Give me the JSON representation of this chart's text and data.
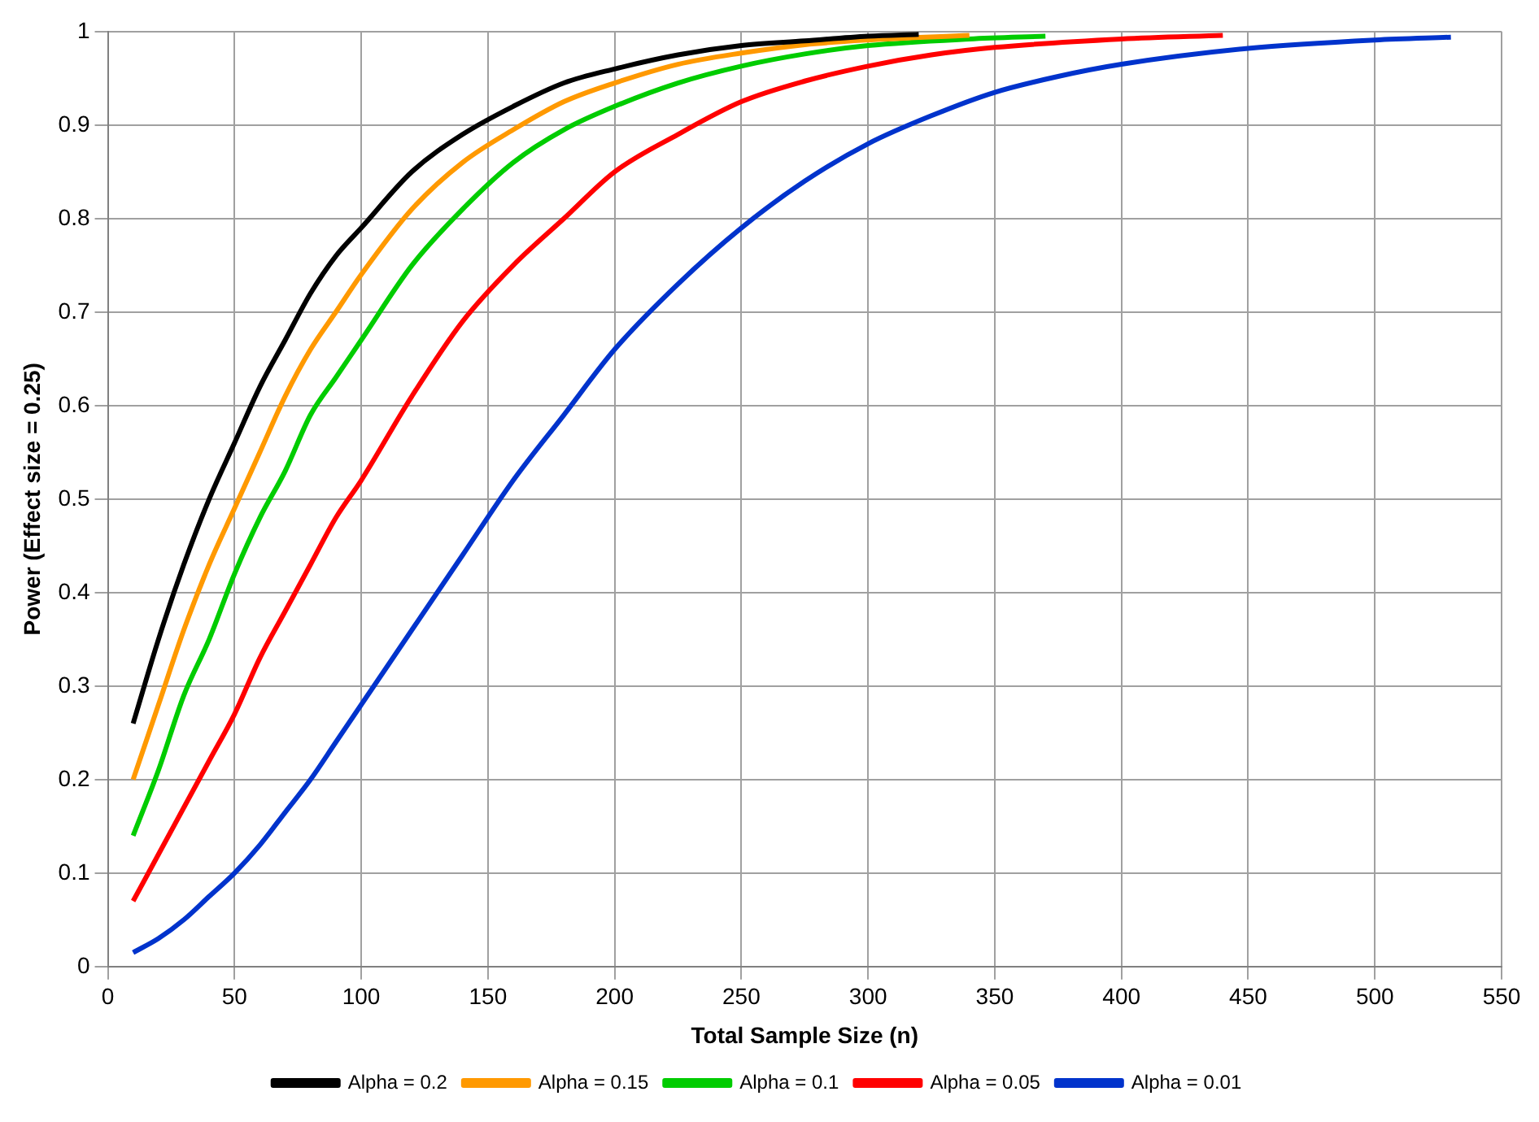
{
  "chart_data": {
    "type": "line",
    "xlabel": "Total Sample Size (n)",
    "ylabel": "Power (Effect size = 0.25)",
    "xlim": [
      0,
      550
    ],
    "xticks": [
      0,
      50,
      100,
      150,
      200,
      250,
      300,
      350,
      400,
      450,
      500,
      550
    ],
    "ylim": [
      0,
      1
    ],
    "yticks": [
      0,
      0.1,
      0.2,
      0.3,
      0.4,
      0.5,
      0.6,
      0.7,
      0.8,
      0.9,
      1
    ],
    "grid": true,
    "legend": "bottom",
    "marker": "none",
    "line_style": "solid",
    "series": [
      {
        "name": "Alpha = 0.2",
        "color": "#000000",
        "x": [
          10,
          20,
          30,
          40,
          50,
          60,
          70,
          80,
          90,
          100,
          120,
          140,
          160,
          180,
          200,
          225,
          250,
          275,
          300,
          320
        ],
        "values": [
          0.26,
          0.35,
          0.43,
          0.5,
          0.56,
          0.62,
          0.67,
          0.72,
          0.76,
          0.79,
          0.85,
          0.89,
          0.92,
          0.945,
          0.96,
          0.975,
          0.985,
          0.99,
          0.995,
          0.997
        ]
      },
      {
        "name": "Alpha = 0.15",
        "color": "#ff9900",
        "x": [
          10,
          20,
          30,
          40,
          50,
          60,
          70,
          80,
          90,
          100,
          120,
          140,
          160,
          180,
          200,
          225,
          250,
          275,
          300,
          340
        ],
        "values": [
          0.2,
          0.28,
          0.36,
          0.43,
          0.49,
          0.55,
          0.61,
          0.66,
          0.7,
          0.74,
          0.81,
          0.86,
          0.895,
          0.925,
          0.945,
          0.965,
          0.977,
          0.986,
          0.991,
          0.996
        ]
      },
      {
        "name": "Alpha = 0.1",
        "color": "#00cc00",
        "x": [
          10,
          20,
          30,
          40,
          50,
          60,
          70,
          80,
          90,
          100,
          120,
          140,
          160,
          180,
          200,
          225,
          250,
          275,
          300,
          340,
          370
        ],
        "values": [
          0.14,
          0.21,
          0.29,
          0.35,
          0.42,
          0.48,
          0.53,
          0.59,
          0.63,
          0.67,
          0.75,
          0.81,
          0.86,
          0.895,
          0.92,
          0.945,
          0.963,
          0.976,
          0.985,
          0.992,
          0.995
        ]
      },
      {
        "name": "Alpha = 0.05",
        "color": "#ff0000",
        "x": [
          10,
          20,
          30,
          40,
          50,
          60,
          70,
          80,
          90,
          100,
          120,
          140,
          160,
          180,
          200,
          225,
          250,
          275,
          300,
          325,
          350,
          400,
          440
        ],
        "values": [
          0.07,
          0.12,
          0.17,
          0.22,
          0.27,
          0.33,
          0.38,
          0.43,
          0.48,
          0.52,
          0.61,
          0.69,
          0.75,
          0.8,
          0.85,
          0.89,
          0.925,
          0.947,
          0.963,
          0.975,
          0.983,
          0.992,
          0.996
        ]
      },
      {
        "name": "Alpha = 0.01",
        "color": "#0033cc",
        "x": [
          10,
          20,
          30,
          40,
          50,
          60,
          70,
          80,
          90,
          100,
          120,
          140,
          160,
          180,
          200,
          225,
          250,
          275,
          300,
          325,
          350,
          375,
          400,
          450,
          500,
          530
        ],
        "values": [
          0.015,
          0.03,
          0.05,
          0.075,
          0.1,
          0.13,
          0.165,
          0.2,
          0.24,
          0.28,
          0.36,
          0.44,
          0.52,
          0.59,
          0.66,
          0.73,
          0.79,
          0.84,
          0.88,
          0.91,
          0.935,
          0.952,
          0.965,
          0.982,
          0.991,
          0.994
        ]
      }
    ]
  }
}
